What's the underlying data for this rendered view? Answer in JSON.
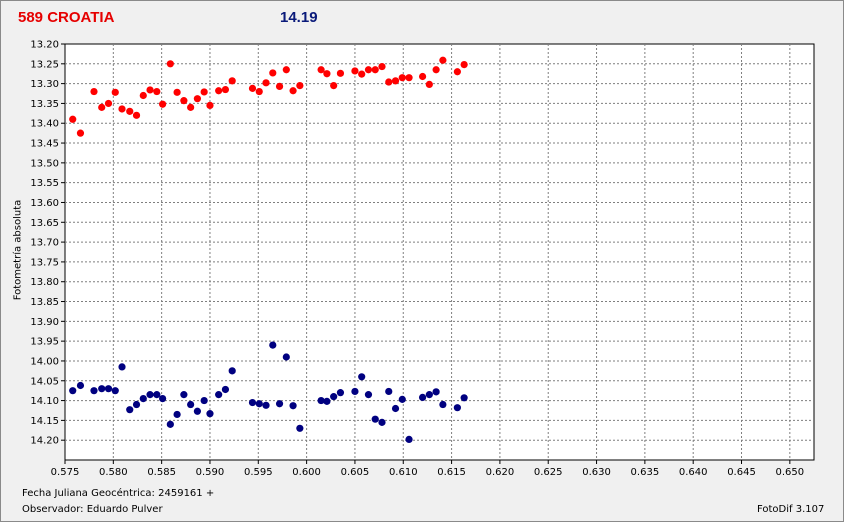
{
  "header": {
    "object": "589 CROATIA",
    "magnitude": "14.19"
  },
  "footer": {
    "date_label": "Fecha Juliana Geocéntrica:",
    "date_value": "2459161 +",
    "observer_label": "Observador:",
    "observer_name": "Eduardo Pulver",
    "software": "FotoDif 3.107"
  },
  "colors": {
    "red_series": "#ff0000",
    "blue_series": "#000080",
    "title_red": "#e60000",
    "title_blue": "#0a1a7a",
    "grid": "#7f7f7f"
  },
  "chart_data": {
    "type": "scatter",
    "ylabel": "Fotometría absoluta",
    "xlabel": "",
    "xlim": [
      0.575,
      0.6525
    ],
    "ylim": [
      14.25,
      13.2
    ],
    "y_inverted": true,
    "grid": true,
    "x_ticks": [
      "0.575",
      "0.580",
      "0.585",
      "0.590",
      "0.595",
      "0.600",
      "0.605",
      "0.610",
      "0.615",
      "0.620",
      "0.625",
      "0.630",
      "0.635",
      "0.640",
      "0.645",
      "0.650"
    ],
    "y_ticks": [
      "13.20",
      "13.25",
      "13.30",
      "13.35",
      "13.40",
      "13.45",
      "13.50",
      "13.55",
      "13.60",
      "13.65",
      "13.70",
      "13.75",
      "13.80",
      "13.85",
      "13.90",
      "13.95",
      "14.00",
      "14.05",
      "14.10",
      "14.15",
      "14.20"
    ],
    "series": [
      {
        "color": "#ff0000",
        "points": [
          [
            0.5758,
            13.39
          ],
          [
            0.5766,
            13.425
          ],
          [
            0.578,
            13.32
          ],
          [
            0.5788,
            13.36
          ],
          [
            0.5795,
            13.35
          ],
          [
            0.5802,
            13.322
          ],
          [
            0.5809,
            13.364
          ],
          [
            0.5817,
            13.37
          ],
          [
            0.5824,
            13.38
          ],
          [
            0.5831,
            13.33
          ],
          [
            0.5838,
            13.316
          ],
          [
            0.5845,
            13.32
          ],
          [
            0.5851,
            13.352
          ],
          [
            0.5859,
            13.25
          ],
          [
            0.5866,
            13.322
          ],
          [
            0.5873,
            13.343
          ],
          [
            0.588,
            13.36
          ],
          [
            0.5887,
            13.338
          ],
          [
            0.5894,
            13.321
          ],
          [
            0.59,
            13.355
          ],
          [
            0.5909,
            13.318
          ],
          [
            0.5916,
            13.315
          ],
          [
            0.5923,
            13.293
          ],
          [
            0.5944,
            13.312
          ],
          [
            0.5951,
            13.32
          ],
          [
            0.5958,
            13.298
          ],
          [
            0.5965,
            13.273
          ],
          [
            0.5972,
            13.307
          ],
          [
            0.5979,
            13.265
          ],
          [
            0.5986,
            13.318
          ],
          [
            0.5993,
            13.305
          ],
          [
            0.6015,
            13.265
          ],
          [
            0.6021,
            13.275
          ],
          [
            0.6028,
            13.305
          ],
          [
            0.6035,
            13.274
          ],
          [
            0.605,
            13.268
          ],
          [
            0.6057,
            13.276
          ],
          [
            0.6064,
            13.265
          ],
          [
            0.6071,
            13.265
          ],
          [
            0.6078,
            13.257
          ],
          [
            0.6085,
            13.296
          ],
          [
            0.6092,
            13.293
          ],
          [
            0.6099,
            13.285
          ],
          [
            0.6106,
            13.285
          ],
          [
            0.612,
            13.282
          ],
          [
            0.6127,
            13.302
          ],
          [
            0.6134,
            13.265
          ],
          [
            0.6141,
            13.241
          ],
          [
            0.6156,
            13.27
          ],
          [
            0.6163,
            13.252
          ]
        ]
      },
      {
        "color": "#000080",
        "points": [
          [
            0.5758,
            14.075
          ],
          [
            0.5766,
            14.062
          ],
          [
            0.578,
            14.075
          ],
          [
            0.5788,
            14.07
          ],
          [
            0.5795,
            14.07
          ],
          [
            0.5802,
            14.075
          ],
          [
            0.5809,
            14.015
          ],
          [
            0.5817,
            14.123
          ],
          [
            0.5824,
            14.11
          ],
          [
            0.5831,
            14.095
          ],
          [
            0.5838,
            14.085
          ],
          [
            0.5845,
            14.085
          ],
          [
            0.5851,
            14.095
          ],
          [
            0.5859,
            14.16
          ],
          [
            0.5866,
            14.135
          ],
          [
            0.5873,
            14.085
          ],
          [
            0.588,
            14.11
          ],
          [
            0.5887,
            14.127
          ],
          [
            0.5894,
            14.1
          ],
          [
            0.59,
            14.133
          ],
          [
            0.5909,
            14.085
          ],
          [
            0.5916,
            14.072
          ],
          [
            0.5923,
            14.025
          ],
          [
            0.5944,
            14.105
          ],
          [
            0.5951,
            14.108
          ],
          [
            0.5958,
            14.112
          ],
          [
            0.5965,
            13.96
          ],
          [
            0.5972,
            14.108
          ],
          [
            0.5979,
            13.99
          ],
          [
            0.5986,
            14.113
          ],
          [
            0.5993,
            14.17
          ],
          [
            0.6015,
            14.1
          ],
          [
            0.6021,
            14.102
          ],
          [
            0.6028,
            14.09
          ],
          [
            0.6035,
            14.08
          ],
          [
            0.605,
            14.077
          ],
          [
            0.6057,
            14.04
          ],
          [
            0.6064,
            14.085
          ],
          [
            0.6071,
            14.147
          ],
          [
            0.6078,
            14.155
          ],
          [
            0.6085,
            14.077
          ],
          [
            0.6092,
            14.12
          ],
          [
            0.6099,
            14.097
          ],
          [
            0.6106,
            14.198
          ],
          [
            0.612,
            14.092
          ],
          [
            0.6127,
            14.085
          ],
          [
            0.6134,
            14.078
          ],
          [
            0.6141,
            14.11
          ],
          [
            0.6156,
            14.118
          ],
          [
            0.6163,
            14.093
          ]
        ]
      }
    ]
  }
}
